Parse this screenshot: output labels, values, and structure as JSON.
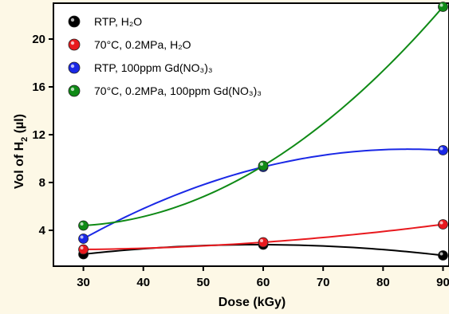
{
  "background_color": "#fdf8e6",
  "chart_data": {
    "type": "scatter",
    "title": "",
    "xlabel": "Dose (kGy)",
    "ylabel": "Vol of H2 (µl)",
    "xlim": [
      25,
      91
    ],
    "ylim": [
      1,
      23
    ],
    "xticks": [
      30,
      40,
      50,
      60,
      70,
      80,
      90
    ],
    "yticks": [
      4,
      8,
      12,
      16,
      20
    ],
    "grid": false,
    "legend_position": "top-left",
    "curves": "smooth fitted lines through markers",
    "series": [
      {
        "name": "RTP, H₂O",
        "color": "#000000",
        "x": [
          30,
          60,
          90
        ],
        "y": [
          2.0,
          2.8,
          1.9
        ]
      },
      {
        "name": "70°C, 0.2MPa, H₂O",
        "color": "#e8191e",
        "x": [
          30,
          60,
          90
        ],
        "y": [
          2.4,
          3.0,
          4.5
        ]
      },
      {
        "name": "RTP, 100ppm Gd(NO₃)₃",
        "color": "#1a28e6",
        "x": [
          30,
          60,
          90
        ],
        "y": [
          3.3,
          9.3,
          10.7
        ]
      },
      {
        "name": "70°C, 0.2MPa, 100ppm Gd(NO₃)₃",
        "color": "#0f8a16",
        "x": [
          30,
          60,
          90
        ],
        "y": [
          4.4,
          9.4,
          22.7
        ]
      }
    ]
  }
}
